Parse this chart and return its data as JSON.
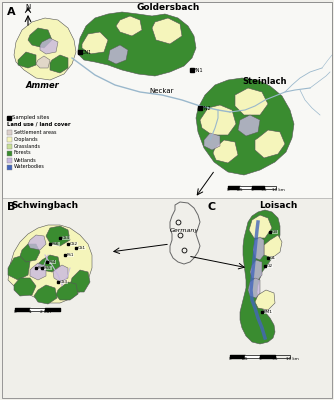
{
  "background_color": "#f0efea",
  "colors": {
    "settlement": "#ddd0cc",
    "croplands": "#f5f5bb",
    "grasslands": "#c8e096",
    "forests": "#3a8c30",
    "wetlands": "#c8b8e0",
    "waterbodies": "#4466bb",
    "rivers": "#9ab8cc",
    "river_light": "#b0c8d8",
    "germany_fill": "#f0efea",
    "black": "#000000",
    "white": "#ffffff",
    "dark_gray": "#444444"
  },
  "labels": {
    "goldersbach": "Goldersbach",
    "ammer": "Ammer",
    "neckar": "Neckar",
    "steinlach": "Steinlach",
    "schwingbach": "Schwingbach",
    "germany": "Germany",
    "loisach": "Loisach"
  },
  "panel_labels": [
    "A",
    "B",
    "C"
  ],
  "legend_title": "Land use / land cover",
  "legend_items": [
    {
      "label": "Settlement areas",
      "color": "#ddd0cc"
    },
    {
      "label": "Croplands",
      "color": "#f5f5bb"
    },
    {
      "label": "Grasslands",
      "color": "#c8e096"
    },
    {
      "label": "Forests",
      "color": "#3a8c30"
    },
    {
      "label": "Wetlands",
      "color": "#c8b8e0"
    },
    {
      "label": "Waterbodies",
      "color": "#4466bb"
    }
  ],
  "sample_sites_label": "Sampled sites"
}
